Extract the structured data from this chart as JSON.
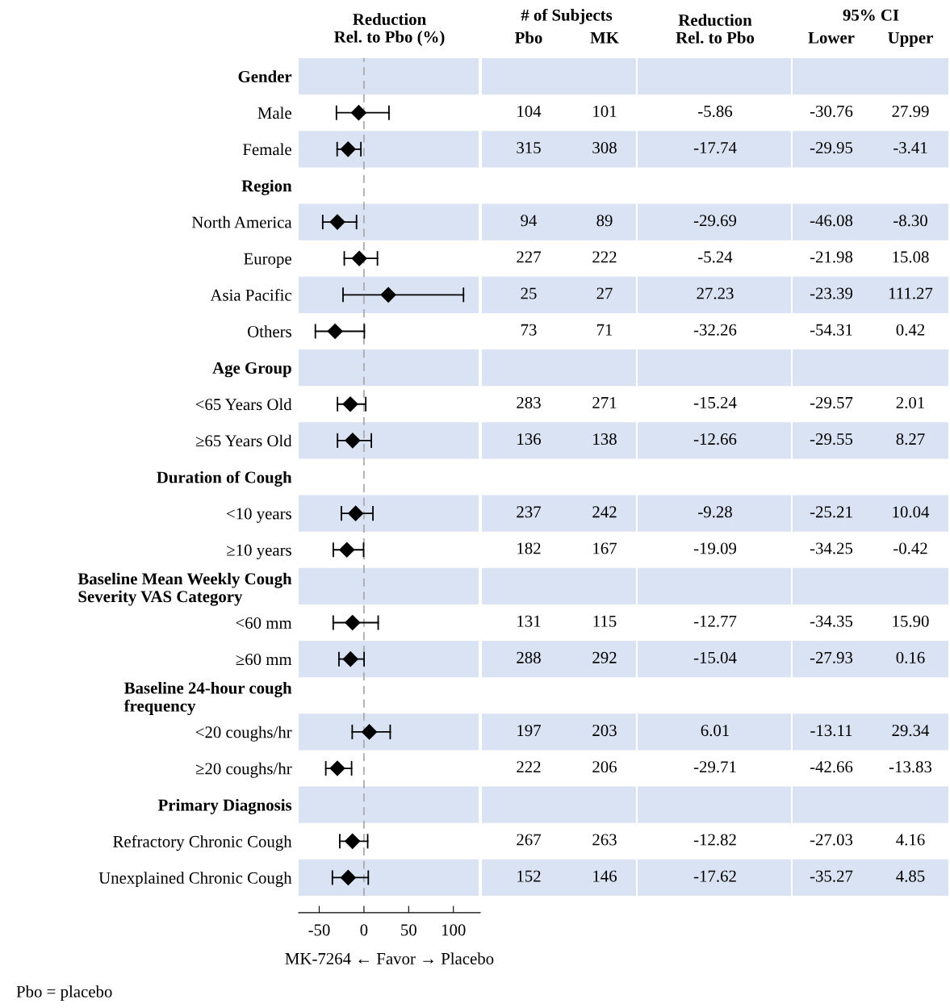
{
  "chart_data": [
    {
      "type": "scatter",
      "title": "Reduction\nRel. to Pbo (%)",
      "xlabel": "MK-7264 ← Favor → Placebo",
      "categories": [
        "Gender",
        "Male",
        "Female",
        "Region",
        "North America",
        "Europe",
        "Asia Pacific",
        "Others",
        "Age Group",
        "<65 Years Old",
        "≥65 Years Old",
        "Duration of Cough",
        "<10 years",
        "≥10 years",
        "Baseline Mean Weekly Cough\nSeverity VAS Category",
        "<60 mm",
        "≥60 mm",
        "Baseline 24-hour cough\nfrequency",
        "<20 coughs/hr",
        "≥20 coughs/hr",
        "Primary Diagnosis",
        "Refractory Chronic Cough",
        "Unexplained Chronic Cough"
      ],
      "values": [
        null,
        -5.86,
        -17.74,
        null,
        -29.69,
        -5.24,
        27.23,
        -32.26,
        null,
        -15.24,
        -12.66,
        null,
        -9.28,
        -19.09,
        null,
        -12.77,
        -15.04,
        null,
        6.01,
        -29.71,
        null,
        -12.82,
        -17.62
      ],
      "errors": [
        null,
        [
          -30.76,
          27.99
        ],
        [
          -29.95,
          -3.41
        ],
        null,
        [
          -46.08,
          -8.3
        ],
        [
          -21.98,
          15.08
        ],
        [
          -23.39,
          111.27
        ],
        [
          -54.31,
          0.42
        ],
        null,
        [
          -29.57,
          2.01
        ],
        [
          -29.55,
          8.27
        ],
        null,
        [
          -25.21,
          10.04
        ],
        [
          -34.25,
          -0.42
        ],
        null,
        [
          -34.35,
          15.9
        ],
        [
          -27.93,
          0.16
        ],
        null,
        [
          -13.11,
          29.34
        ],
        [
          -42.66,
          -13.83
        ],
        null,
        [
          -27.03,
          4.16
        ],
        [
          -35.27,
          4.85
        ]
      ],
      "color": "#000000",
      "marker": "diamond",
      "orientation": "horizontal",
      "xlim": [
        -73,
        130
      ],
      "xticks": [
        -50,
        0,
        50,
        100
      ],
      "grid": false,
      "legend": false,
      "ref_lines": [
        {
          "axis": "x",
          "value": 0,
          "color": "#a6a6a6",
          "line_style": "dashed"
        }
      ],
      "bands": [
        {
          "axis": "y",
          "from": "Gender",
          "to": "Gender",
          "color": "#dae3f3"
        },
        {
          "axis": "y",
          "from": "Female",
          "to": "Female",
          "color": "#dae3f3"
        },
        {
          "axis": "y",
          "from": "North America",
          "to": "North America",
          "color": "#dae3f3"
        },
        {
          "axis": "y",
          "from": "Asia Pacific",
          "to": "Asia Pacific",
          "color": "#dae3f3"
        },
        {
          "axis": "y",
          "from": "Age Group",
          "to": "Age Group",
          "color": "#dae3f3"
        },
        {
          "axis": "y",
          "from": "≥65 Years Old",
          "to": "≥65 Years Old",
          "color": "#dae3f3"
        },
        {
          "axis": "y",
          "from": "<10 years",
          "to": "<10 years",
          "color": "#dae3f3"
        },
        {
          "axis": "y",
          "from": "Baseline Mean Weekly Cough\nSeverity VAS Category",
          "to": "Baseline Mean Weekly Cough\nSeverity VAS Category",
          "color": "#dae3f3"
        },
        {
          "axis": "y",
          "from": "≥60 mm",
          "to": "≥60 mm",
          "color": "#dae3f3"
        },
        {
          "axis": "y",
          "from": "<20 coughs/hr",
          "to": "<20 coughs/hr",
          "color": "#dae3f3"
        },
        {
          "axis": "y",
          "from": "Primary Diagnosis",
          "to": "Primary Diagnosis",
          "color": "#dae3f3"
        },
        {
          "axis": "y",
          "from": "Unexplained Chronic Cough",
          "to": "Unexplained Chronic Cough",
          "color": "#dae3f3"
        }
      ],
      "annotations": [
        "Pbo = placebo"
      ]
    },
    {
      "type": "other",
      "categories": [
        "Pbo",
        "MK",
        "Reduction\nRel. to Pbo",
        "Lower",
        "Upper"
      ],
      "annotations": [
        "# of Subjects",
        "95% CI"
      ],
      "cell_labels": [
        null,
        [
          "104",
          "101",
          "-5.86",
          "-30.76",
          "27.99"
        ],
        [
          "315",
          "308",
          "-17.74",
          "-29.95",
          "-3.41"
        ],
        null,
        [
          "94",
          "89",
          "-29.69",
          "-46.08",
          "-8.30"
        ],
        [
          "227",
          "222",
          "-5.24",
          "-21.98",
          "15.08"
        ],
        [
          "25",
          "27",
          "27.23",
          "-23.39",
          "111.27"
        ],
        [
          "73",
          "71",
          "-32.26",
          "-54.31",
          "0.42"
        ],
        null,
        [
          "283",
          "271",
          "-15.24",
          "-29.57",
          "2.01"
        ],
        [
          "136",
          "138",
          "-12.66",
          "-29.55",
          "8.27"
        ],
        null,
        [
          "237",
          "242",
          "-9.28",
          "-25.21",
          "10.04"
        ],
        [
          "182",
          "167",
          "-19.09",
          "-34.25",
          "-0.42"
        ],
        null,
        [
          "131",
          "115",
          "-12.77",
          "-34.35",
          "15.90"
        ],
        [
          "288",
          "292",
          "-15.04",
          "-27.93",
          "0.16"
        ],
        null,
        [
          "197",
          "203",
          "6.01",
          "-13.11",
          "29.34"
        ],
        [
          "222",
          "206",
          "-29.71",
          "-42.66",
          "-13.83"
        ],
        null,
        [
          "267",
          "263",
          "-12.82",
          "-27.03",
          "4.16"
        ],
        [
          "152",
          "146",
          "-17.62",
          "-35.27",
          "4.85"
        ]
      ]
    }
  ]
}
